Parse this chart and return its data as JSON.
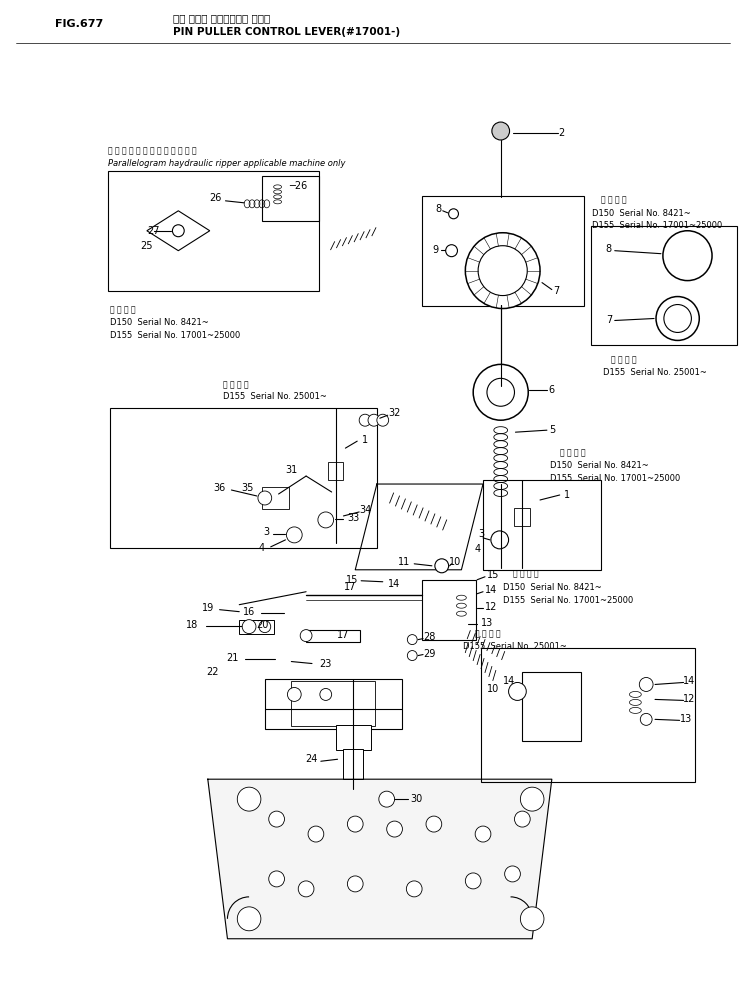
{
  "fig_number": "FIG.677",
  "title_jp": "ピン プラー コントロール レバー",
  "title_en": "PIN PULLER CONTROL LEVER(#17001-)",
  "bg_color": "#ffffff",
  "lc": "#000000",
  "fig_w": 7.56,
  "fig_h": 9.9
}
